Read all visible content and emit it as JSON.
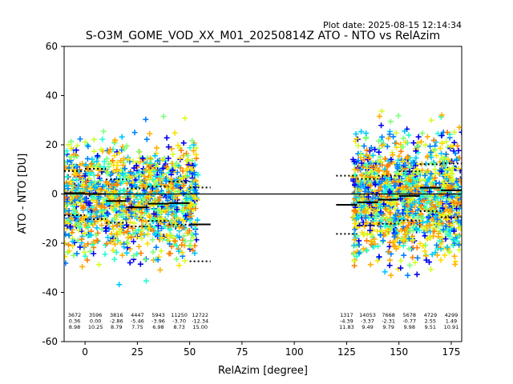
{
  "plot_date": "Plot date: 2025-08-15 12:14:34",
  "chart_data": {
    "type": "scatter",
    "title": "S-O3M_GOME_VOD_XX_M01_20250814Z ATO - NTO vs RelAzim",
    "xlabel": "RelAzim [degree]",
    "ylabel": "ATO - NTO [DU]",
    "xlim": [
      -10,
      180
    ],
    "ylim": [
      -60,
      60
    ],
    "xticks": [
      0,
      25,
      50,
      75,
      100,
      125,
      150,
      175
    ],
    "yticks": [
      -60,
      -40,
      -20,
      0,
      20,
      40,
      60
    ],
    "grid": false,
    "zero_line": 0,
    "scatter_colors": [
      "#0000ee",
      "#0080ff",
      "#00c8ff",
      "#20ffd0",
      "#7dff7a",
      "#d2ff2a",
      "#ffe000",
      "#ffb000",
      "#ff8000"
    ],
    "point_clusters": [
      {
        "x": [
          -10,
          54
        ],
        "y_center": -2,
        "y_spread": 18
      },
      {
        "x": [
          128,
          180
        ],
        "y_center": -1,
        "y_spread": 20
      }
    ],
    "bins": [
      {
        "x": -5,
        "count": 3672,
        "mean": 0.36,
        "std": 8.98
      },
      {
        "x": 5,
        "count": 3596,
        "mean": 0.0,
        "std": 10.25
      },
      {
        "x": 15,
        "count": 3816,
        "mean": -2.86,
        "std": 8.79
      },
      {
        "x": 25,
        "count": 4447,
        "mean": -5.46,
        "std": 7.75
      },
      {
        "x": 35,
        "count": 5943,
        "mean": -3.96,
        "std": 6.98
      },
      {
        "x": 45,
        "count": 11250,
        "mean": -3.7,
        "std": 8.73
      },
      {
        "x": 55,
        "count": 12722,
        "mean": -12.34,
        "std": 15.0
      },
      {
        "x": 125,
        "count": 1317,
        "mean": -4.39,
        "std": 11.83
      },
      {
        "x": 135,
        "count": 14053,
        "mean": -3.37,
        "std": 9.49
      },
      {
        "x": 145,
        "count": 7668,
        "mean": -2.31,
        "std": 9.79
      },
      {
        "x": 155,
        "count": 5678,
        "mean": -0.77,
        "std": 9.98
      },
      {
        "x": 165,
        "count": 4729,
        "mean": 2.55,
        "std": 9.51
      },
      {
        "x": 175,
        "count": 4299,
        "mean": 1.49,
        "std": 10.91
      }
    ]
  }
}
